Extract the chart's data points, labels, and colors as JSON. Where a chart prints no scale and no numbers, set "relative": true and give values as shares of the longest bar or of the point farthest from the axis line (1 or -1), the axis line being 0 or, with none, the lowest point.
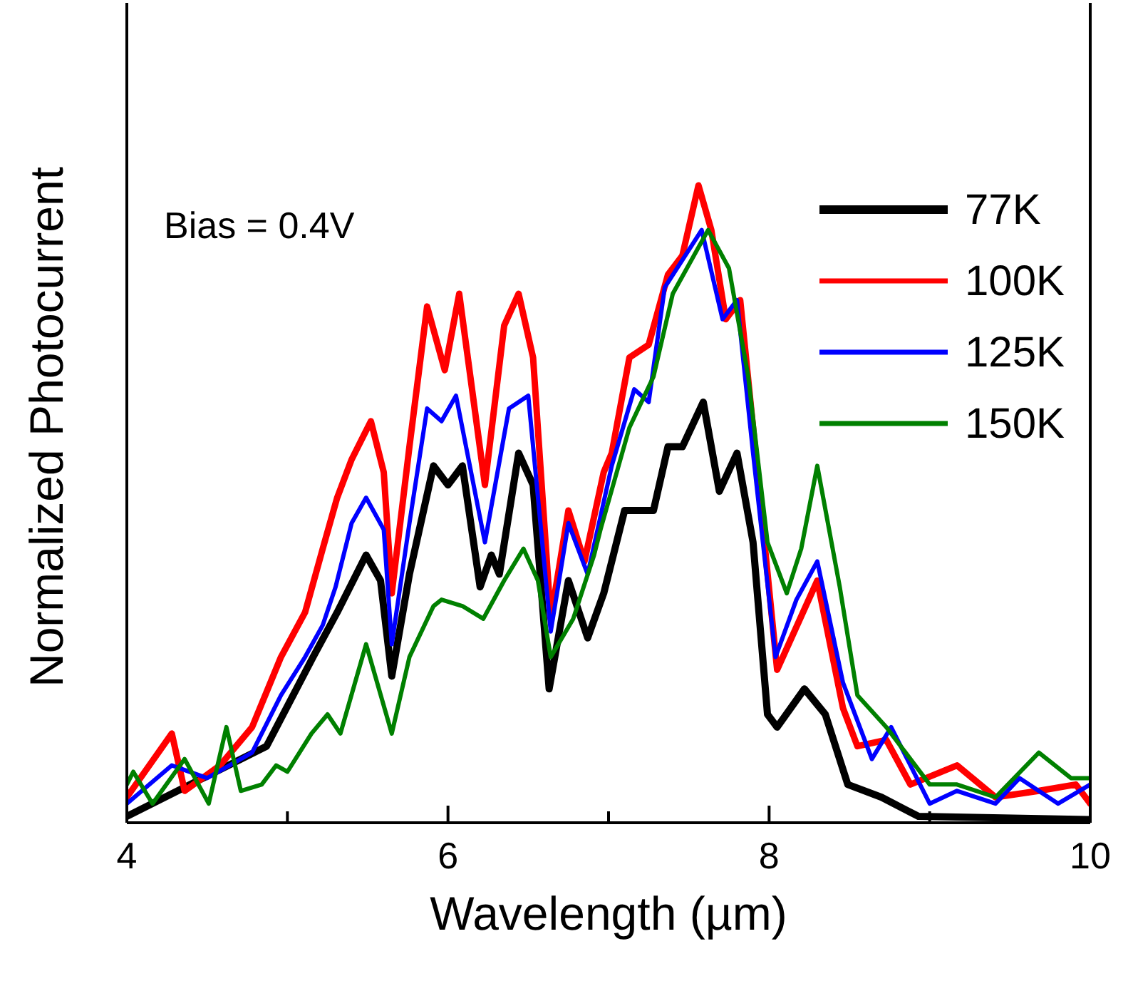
{
  "chart_data": {
    "type": "line",
    "relative": true,
    "xlabel": "Wavelength (µm)",
    "ylabel": "Normalized Photocurrent",
    "xlim": [
      4,
      10
    ],
    "xticks": [
      4,
      {
        "value": 5,
        "label": null
      },
      6,
      {
        "value": 7,
        "label": null
      },
      8,
      {
        "value": 9,
        "label": null
      },
      10
    ],
    "legend": "top right",
    "annotations": [
      "Bias = 0.4V"
    ],
    "series": [
      {
        "name": "77K",
        "color": "#000000",
        "x": [
          4.0,
          4.87,
          5.16,
          5.31,
          5.49,
          5.58,
          5.65,
          5.76,
          5.91,
          6.0,
          6.09,
          6.2,
          6.27,
          6.32,
          6.44,
          6.53,
          6.63,
          6.75,
          6.87,
          6.97,
          7.1,
          7.28,
          7.37,
          7.46,
          7.59,
          7.69,
          7.8,
          7.9,
          7.99,
          8.05,
          8.22,
          8.35,
          8.49,
          8.7,
          8.93,
          10.0
        ],
        "values": [
          0.01,
          0.12,
          0.26,
          0.33,
          0.42,
          0.38,
          0.23,
          0.39,
          0.56,
          0.53,
          0.56,
          0.37,
          0.42,
          0.39,
          0.58,
          0.53,
          0.21,
          0.38,
          0.29,
          0.36,
          0.49,
          0.49,
          0.59,
          0.59,
          0.66,
          0.52,
          0.58,
          0.44,
          0.17,
          0.15,
          0.21,
          0.17,
          0.06,
          0.04,
          0.01,
          0.005
        ]
      },
      {
        "name": "100K",
        "color": "#ff0000",
        "x": [
          4.0,
          4.28,
          4.36,
          4.58,
          4.78,
          4.96,
          5.11,
          5.22,
          5.31,
          5.4,
          5.52,
          5.6,
          5.65,
          5.76,
          5.87,
          5.98,
          6.07,
          6.23,
          6.35,
          6.44,
          6.53,
          6.64,
          6.75,
          6.85,
          6.97,
          7.02,
          7.13,
          7.25,
          7.37,
          7.46,
          7.56,
          7.64,
          7.73,
          7.82,
          7.9,
          8.05,
          8.3,
          8.46,
          8.55,
          8.73,
          8.88,
          9.17,
          9.41,
          9.68,
          9.91,
          10.0
        ],
        "values": [
          0.04,
          0.14,
          0.05,
          0.09,
          0.15,
          0.26,
          0.33,
          0.43,
          0.51,
          0.57,
          0.63,
          0.55,
          0.36,
          0.59,
          0.81,
          0.71,
          0.83,
          0.53,
          0.78,
          0.83,
          0.73,
          0.32,
          0.49,
          0.41,
          0.55,
          0.58,
          0.73,
          0.75,
          0.86,
          0.89,
          1.0,
          0.93,
          0.79,
          0.82,
          0.62,
          0.24,
          0.38,
          0.18,
          0.12,
          0.13,
          0.06,
          0.09,
          0.04,
          0.05,
          0.06,
          0.03
        ]
      },
      {
        "name": "125K",
        "color": "#0000ff",
        "x": [
          4.0,
          4.28,
          4.5,
          4.78,
          4.96,
          5.11,
          5.22,
          5.3,
          5.4,
          5.49,
          5.6,
          5.65,
          5.76,
          5.87,
          5.96,
          6.05,
          6.23,
          6.38,
          6.5,
          6.64,
          6.75,
          6.87,
          7.02,
          7.16,
          7.25,
          7.35,
          7.58,
          7.71,
          7.8,
          7.9,
          8.04,
          8.17,
          8.3,
          8.46,
          8.64,
          8.76,
          9.0,
          9.17,
          9.41,
          9.56,
          9.8,
          10.0
        ],
        "values": [
          0.03,
          0.09,
          0.07,
          0.11,
          0.2,
          0.26,
          0.31,
          0.37,
          0.47,
          0.51,
          0.46,
          0.28,
          0.47,
          0.65,
          0.63,
          0.67,
          0.44,
          0.65,
          0.67,
          0.3,
          0.47,
          0.39,
          0.56,
          0.68,
          0.66,
          0.84,
          0.93,
          0.79,
          0.82,
          0.58,
          0.26,
          0.35,
          0.41,
          0.22,
          0.1,
          0.15,
          0.03,
          0.05,
          0.03,
          0.07,
          0.03,
          0.06
        ]
      },
      {
        "name": "150K",
        "color": "#008000",
        "x": [
          4.0,
          4.04,
          4.16,
          4.36,
          4.51,
          4.62,
          4.71,
          4.84,
          4.93,
          5.0,
          5.15,
          5.25,
          5.33,
          5.49,
          5.65,
          5.76,
          5.91,
          5.96,
          6.09,
          6.22,
          6.35,
          6.47,
          6.56,
          6.64,
          6.78,
          6.91,
          6.95,
          7.13,
          7.28,
          7.4,
          7.62,
          7.75,
          7.87,
          7.99,
          8.11,
          8.2,
          8.3,
          8.44,
          8.55,
          8.73,
          9.0,
          9.17,
          9.41,
          9.68,
          9.88,
          10.0
        ],
        "values": [
          0.06,
          0.08,
          0.03,
          0.1,
          0.03,
          0.15,
          0.05,
          0.06,
          0.09,
          0.08,
          0.14,
          0.17,
          0.14,
          0.28,
          0.14,
          0.26,
          0.34,
          0.35,
          0.34,
          0.32,
          0.38,
          0.43,
          0.38,
          0.26,
          0.32,
          0.42,
          0.46,
          0.62,
          0.7,
          0.83,
          0.93,
          0.87,
          0.7,
          0.44,
          0.36,
          0.43,
          0.56,
          0.37,
          0.2,
          0.15,
          0.06,
          0.06,
          0.04,
          0.11,
          0.07,
          0.07
        ]
      }
    ]
  }
}
